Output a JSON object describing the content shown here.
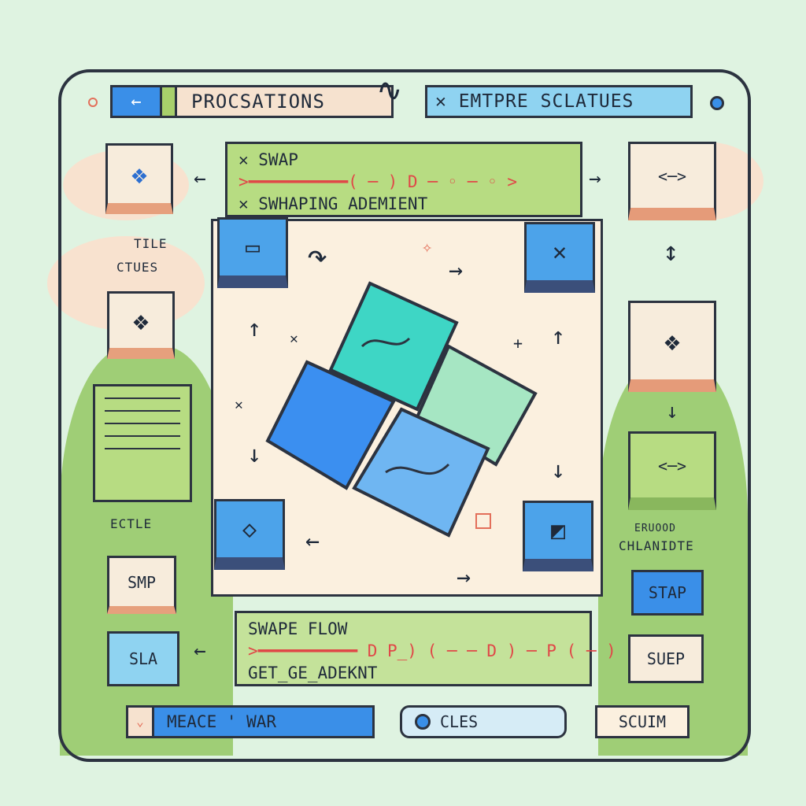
{
  "header": {
    "left_title": "PROCSATIONS",
    "right_title": "✕ EMTPRE SCLATUES",
    "back_icon": "left-arrow-icon"
  },
  "left_panel": {
    "label_tile_top": "TILE",
    "label_tile_bottom": "CTUES",
    "label_ectle": "ECTLE",
    "smp_button": "SMP",
    "sla_button": "SLA"
  },
  "code_top": {
    "line1": "✕ SWAP",
    "line2": ">━━━━━━━━━━( ─ ) D ─ ◦ ─ ◦ >",
    "line3": "✕ SWHAPING ADEMIENT"
  },
  "code_bottom": {
    "line1": "SWAPE FLOW",
    "line2": ">━━━━━━━━━━ D P_) ( ─ ─ D ) ─ P ( ─ )",
    "line3": "GET_GE_ADEKNT"
  },
  "right_panel": {
    "label_top": "ERUOOD",
    "label_bottom": "CHLANIDTE",
    "stap_button": "STAP",
    "suep_button": "SUEP"
  },
  "footer": {
    "message_bar": "MEACE ' WAR",
    "cles_button": "CLES",
    "scuim_button": "SCUIM"
  },
  "colors": {
    "accent_blue": "#3a8fe8",
    "teal": "#3ed6c5",
    "green": "#b7dc82",
    "peach": "#f6e2cf",
    "outline": "#2c3340"
  }
}
